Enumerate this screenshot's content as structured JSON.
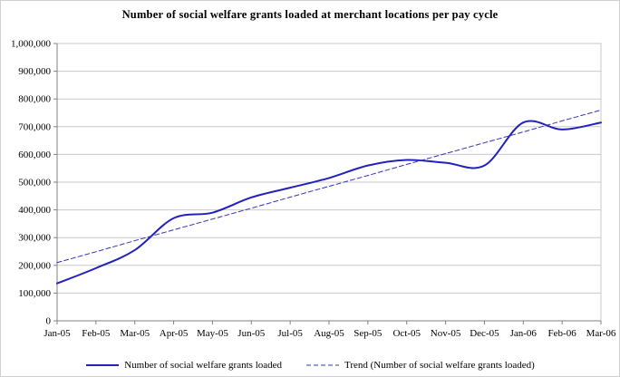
{
  "title": "Number of social welfare grants loaded at merchant locations per pay cycle",
  "legend": {
    "series1": "Number of social welfare grants loaded",
    "series2": "Trend (Number of social welfare grants loaded)"
  },
  "colors": {
    "series_line": "#2222bb",
    "trend_line": "#3333bb",
    "gridline": "#c9c9c9",
    "axis": "#808080",
    "text": "#000000",
    "background": "#ffffff"
  },
  "chart_data": {
    "type": "line",
    "title": "Number of social welfare grants loaded at merchant locations per pay cycle",
    "categories": [
      "Jan-05",
      "Feb-05",
      "Mar-05",
      "Apr-05",
      "May-05",
      "Jun-05",
      "Jul-05",
      "Aug-05",
      "Sep-05",
      "Oct-05",
      "Nov-05",
      "Dec-05",
      "Jan-06",
      "Feb-06",
      "Mar-06"
    ],
    "series": [
      {
        "name": "Number of social welfare grants loaded",
        "style": "solid",
        "smooth": true,
        "values": [
          135000,
          190000,
          255000,
          370000,
          390000,
          445000,
          480000,
          515000,
          560000,
          580000,
          570000,
          560000,
          715000,
          690000,
          715000
        ]
      },
      {
        "name": "Trend (Number of social welfare grants loaded)",
        "style": "dashed",
        "smooth": false,
        "values": [
          210000,
          249000,
          289000,
          328000,
          367000,
          406000,
          446000,
          485000,
          524000,
          564000,
          603000,
          642000,
          681000,
          721000,
          760000
        ]
      }
    ],
    "xlabel": "",
    "ylabel": "",
    "ylim": [
      0,
      1000000
    ],
    "ytick_step": 100000,
    "grid": true,
    "legend_position": "bottom"
  }
}
